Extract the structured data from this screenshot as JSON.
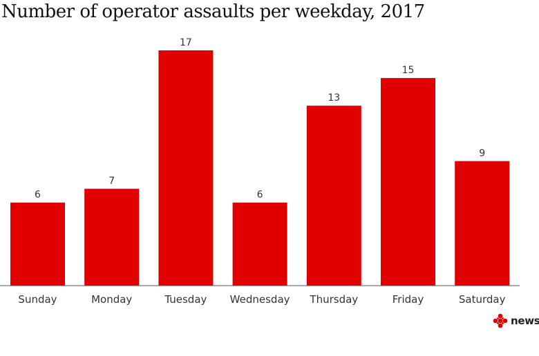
{
  "chart_data": {
    "type": "bar",
    "title": "Number of operator assaults per weekday, 2017",
    "categories": [
      "Sunday",
      "Monday",
      "Tuesday",
      "Wednesday",
      "Thursday",
      "Friday",
      "Saturday"
    ],
    "values": [
      6,
      7,
      17,
      6,
      13,
      15,
      9
    ],
    "xlabel": "",
    "ylabel": "",
    "ylim": [
      0,
      17
    ],
    "grid": false,
    "legend": "none",
    "bar_color": "#e00000",
    "data_labels": true
  },
  "brand": {
    "logo_text": "news",
    "logo_color": "#e00000"
  }
}
